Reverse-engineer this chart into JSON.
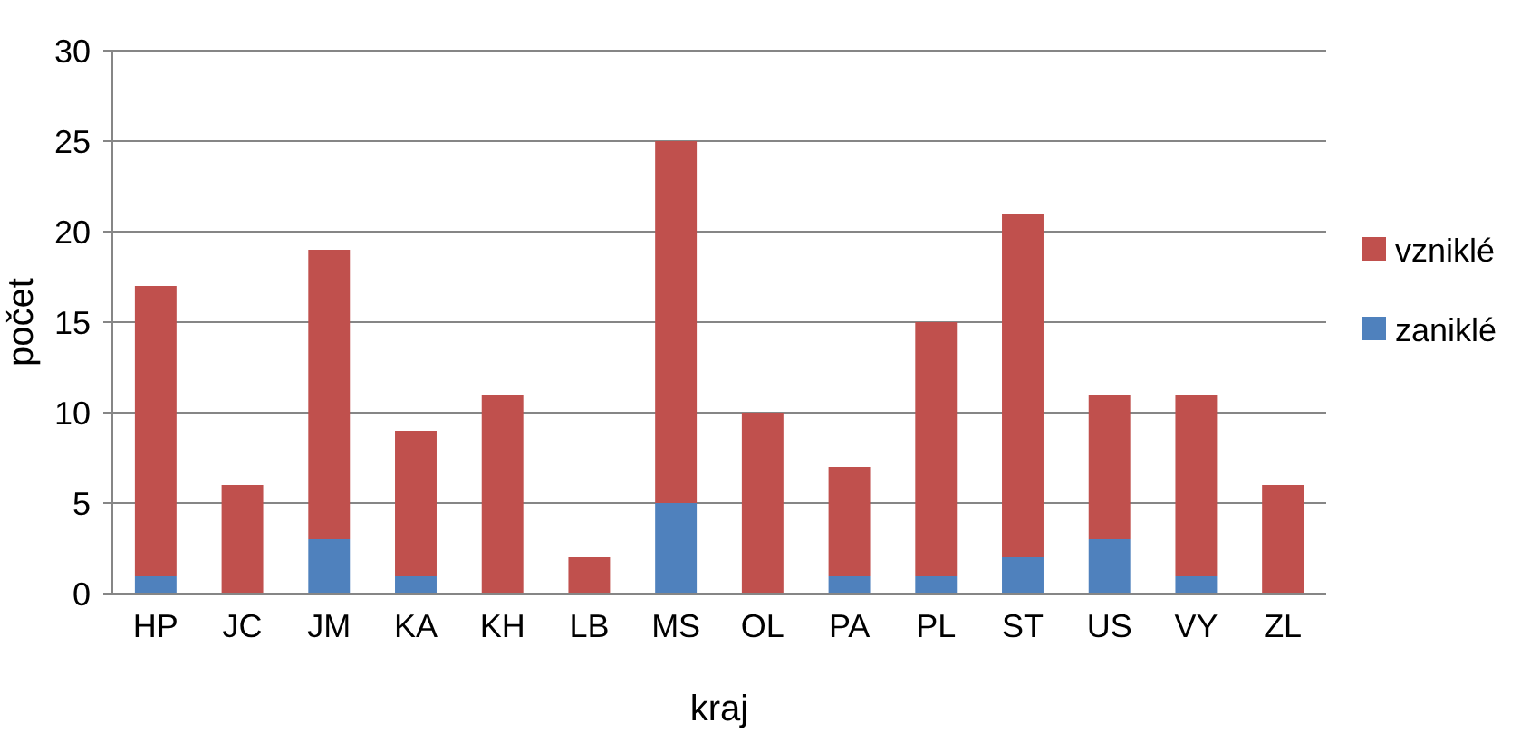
{
  "chart_data": {
    "type": "bar",
    "stacked": true,
    "xlabel": "kraj",
    "ylabel": "počet",
    "categories": [
      "HP",
      "JC",
      "JM",
      "KA",
      "KH",
      "LB",
      "MS",
      "OL",
      "PA",
      "PL",
      "ST",
      "US",
      "VY",
      "ZL"
    ],
    "series": [
      {
        "name": "zaniklé",
        "color": "#4f81bd",
        "values": [
          1,
          0,
          3,
          1,
          0,
          0,
          5,
          0,
          1,
          1,
          2,
          3,
          1,
          0
        ]
      },
      {
        "name": "vzniklé",
        "color": "#c0504d",
        "values": [
          16,
          6,
          16,
          8,
          11,
          2,
          20,
          10,
          6,
          14,
          19,
          8,
          10,
          6
        ]
      }
    ],
    "ylim": [
      0,
      30
    ],
    "yticks": [
      0,
      5,
      10,
      15,
      20,
      25,
      30
    ],
    "grid": "y",
    "legend": "right"
  }
}
